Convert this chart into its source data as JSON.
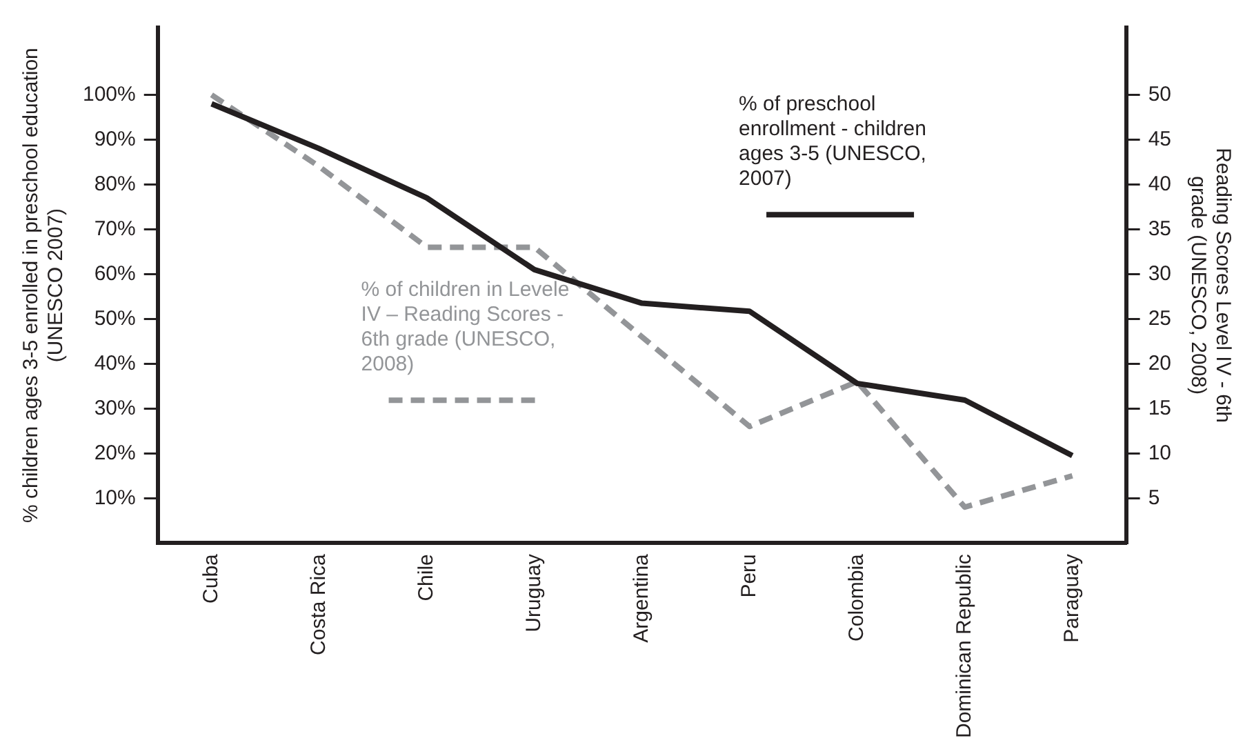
{
  "chart_data": {
    "type": "line",
    "categories": [
      "Cuba",
      "Costa Rica",
      "Chile",
      "Uruguay",
      "Argentina",
      "Peru",
      "Colombia",
      "Dominican Republic",
      "Paraguay"
    ],
    "ylabel": "% children ages 3-5 enrolled in preschool education (UNESCO 2007)",
    "y2label": "Reading Scores Level IV - 6th grade (UNESCO, 2008)",
    "series": [
      {
        "name": "% of preschool enrollment - children ages 3-5 (UNESCO, 2007)",
        "color": "#231f20",
        "line_style": "solid",
        "values": [
          98,
          88,
          77,
          61,
          53.5,
          51.7,
          35.6,
          31.9,
          19.5
        ]
      },
      {
        "name": "% of children in Levele IV – Reading Scores - 6th grade (UNESCO, 2008)",
        "color": "#939598",
        "line_style": "dashed",
        "axis": "y2",
        "values": [
          50,
          42,
          33,
          33,
          23,
          13,
          18,
          4,
          7.5
        ]
      }
    ],
    "ylim": [
      0,
      115
    ],
    "yticks": [
      {
        "value": 10,
        "label": "10%"
      },
      {
        "value": 20,
        "label": "20%"
      },
      {
        "value": 30,
        "label": "30%"
      },
      {
        "value": 40,
        "label": "40%"
      },
      {
        "value": 50,
        "label": "50%"
      },
      {
        "value": 60,
        "label": "60%"
      },
      {
        "value": 70,
        "label": "70%"
      },
      {
        "value": 80,
        "label": "80%"
      },
      {
        "value": 90,
        "label": "90%"
      },
      {
        "value": 100,
        "label": "100%"
      }
    ],
    "y2lim": [
      0,
      57.5
    ],
    "y2ticks": [
      5,
      10,
      15,
      20,
      25,
      30,
      35,
      40,
      45,
      50
    ],
    "grid": false,
    "legend": false,
    "marker": "none"
  }
}
